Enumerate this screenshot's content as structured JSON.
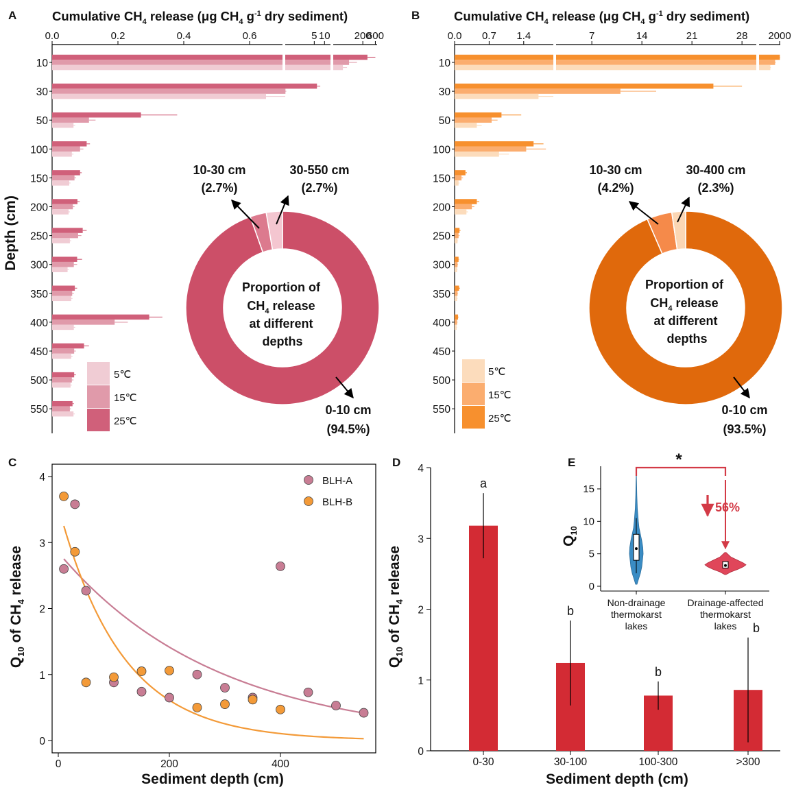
{
  "colors": {
    "A": [
      "#f0ccd4",
      "#e09aaa",
      "#d0607a"
    ],
    "A_donut": [
      "#cc4f68",
      "#dc7a8e",
      "#f4c6d0"
    ],
    "B": [
      "#fcdcbc",
      "#fbad6f",
      "#f7902e"
    ],
    "B_donut": [
      "#e0690c",
      "#f58a4a",
      "#fbd6b4"
    ],
    "blhA": "#c87d94",
    "blhB": "#f39a38",
    "bar": "#d32b34",
    "violin_blue": "#3a8cc4",
    "violin_red": "#e0465a"
  },
  "panel_labels": {
    "A": "A",
    "B": "B",
    "C": "C",
    "D": "D",
    "E": "E"
  },
  "panelA": {
    "title_prefix": "Cumulative CH",
    "title_sub": "4",
    "title_mid": " release (μg CH",
    "title_sub2": "4",
    "title_mid2": " g",
    "title_sup": "-1",
    "title_end": " dry sediment)",
    "xticks": [
      "0.0",
      "0.2",
      "0.4",
      "0.6",
      "5",
      "10",
      "200",
      "600"
    ],
    "ylabel": "Depth (cm)",
    "depths": [
      "10",
      "30",
      "50",
      "100",
      "150",
      "200",
      "250",
      "300",
      "350",
      "400",
      "450",
      "500",
      "550"
    ],
    "legend": [
      "5℃",
      "15℃",
      "25℃"
    ],
    "donut_slices": [
      94.5,
      2.7,
      2.7
    ],
    "donut_labels": {
      "top_left_1": "10-30 cm",
      "top_left_2": "(2.7%)",
      "top_right_1": "30-550 cm",
      "top_right_2": "(2.7%)",
      "bottom_1": "0-10 cm",
      "bottom_2": "(94.5%)"
    },
    "center_text": {
      "l1": "Proportion of",
      "l2a": "CH",
      "l2sub": "4",
      "l2b": " release",
      "l3": "at different",
      "l4": "depths"
    }
  },
  "panelB": {
    "title_prefix": "Cumulative CH",
    "title_sub": "4",
    "title_mid": " release (μg CH",
    "title_sub2": "4",
    "title_mid2": " g",
    "title_sup": "-1",
    "title_end": " dry sediment)",
    "xticks": [
      "0.0",
      "0.7",
      "1.4",
      "7",
      "14",
      "21",
      "28",
      "2000"
    ],
    "depths": [
      "10",
      "30",
      "50",
      "100",
      "150",
      "200",
      "250",
      "300",
      "350",
      "400",
      "450",
      "500",
      "550"
    ],
    "legend": [
      "5℃",
      "15℃",
      "25℃"
    ],
    "donut_slices": [
      93.5,
      4.2,
      2.3
    ],
    "donut_labels": {
      "top_left_1": "10-30 cm",
      "top_left_2": "(4.2%)",
      "top_right_1": "30-400 cm",
      "top_right_2": "(2.3%)",
      "bottom_1": "0-10 cm",
      "bottom_2": "(93.5%)"
    },
    "center_text": {
      "l1": "Proportion of",
      "l2a": "CH",
      "l2sub": "4",
      "l2b": " release",
      "l3": "at different",
      "l4": "depths"
    }
  },
  "panelC": {
    "ylabel_a": "Q",
    "ylabel_sub": "10",
    "ylabel_b": " of CH",
    "ylabel_sub2": "4",
    "ylabel_c": " release",
    "xlabel": "Sediment depth (cm)",
    "yticks": [
      "0",
      "1",
      "2",
      "3",
      "4"
    ],
    "xticks": [
      "0",
      "200",
      "400"
    ],
    "legend": [
      "BLH-A",
      "BLH-B"
    ]
  },
  "panelD": {
    "ylabel_a": "Q",
    "ylabel_sub": "10",
    "ylabel_b": " of CH",
    "ylabel_sub2": "4",
    "ylabel_c": " release",
    "xlabel": "Sediment depth (cm)",
    "yticks": [
      "0",
      "1",
      "2",
      "3",
      "4"
    ],
    "letters": [
      "a",
      "b",
      "b",
      "b"
    ]
  },
  "panelE": {
    "ylabel_a": "Q",
    "ylabel_sub": "10",
    "yticks": [
      "0",
      "5",
      "10",
      "15"
    ],
    "sig": "*",
    "reduction": "56%",
    "cat1": [
      "Non-drainage",
      "thermokarst",
      "lakes"
    ],
    "cat2": [
      "Drainage-affected",
      "thermokarst",
      "lakes"
    ]
  },
  "chart_data": [
    {
      "type": "bar",
      "panel": "A",
      "title": "Cumulative CH4 release (μg CH4 g-1 dry sediment)",
      "ylabel": "Depth (cm)",
      "categories": [
        "10",
        "30",
        "50",
        "100",
        "150",
        "200",
        "250",
        "300",
        "350",
        "400",
        "450",
        "500",
        "550"
      ],
      "series": [
        {
          "name": "25℃",
          "values": [
            300,
            6,
            0.27,
            0.105,
            0.085,
            0.077,
            0.093,
            0.076,
            0.069,
            0.295,
            0.097,
            0.067,
            0.062
          ],
          "err": [
            300,
            1.5,
            0.11,
            0.01,
            0.005,
            0.007,
            0.012,
            0.015,
            0.007,
            0.04,
            0.015,
            0.005,
            0.004
          ]
        },
        {
          "name": "15℃",
          "values": [
            60,
            0.71,
            0.112,
            0.085,
            0.068,
            0.063,
            0.079,
            0.066,
            0.061,
            0.19,
            0.067,
            0.06,
            0.054
          ],
          "err": [
            60,
            0.04,
            0.02,
            0.01,
            0.005,
            0.005,
            0.01,
            0.01,
            0.005,
            0.04,
            0.005,
            0.005,
            0.003
          ]
        },
        {
          "name": "5℃",
          "values": [
            35,
            0.65,
            0.065,
            0.06,
            0.052,
            0.05,
            0.054,
            0.047,
            0.058,
            0.066,
            0.058,
            0.056,
            0.065
          ],
          "err": [
            15,
            0.05,
            0.005,
            0.005,
            0.004,
            0.004,
            0.004,
            0.004,
            0.004,
            0.004,
            0.004,
            0.004,
            0.004
          ]
        }
      ],
      "donut": {
        "labels": [
          "0-10 cm",
          "10-30 cm",
          "30-550 cm"
        ],
        "values": [
          94.5,
          2.7,
          2.7
        ]
      }
    },
    {
      "type": "bar",
      "panel": "B",
      "title": "Cumulative CH4 release (μg CH4 g-1 dry sediment)",
      "categories": [
        "10",
        "30",
        "50",
        "100",
        "150",
        "200",
        "250",
        "300",
        "350",
        "400",
        "450",
        "500",
        "550"
      ],
      "series": [
        {
          "name": "25℃",
          "values": [
            2100,
            24,
            0.95,
            1.6,
            0.22,
            0.45,
            0.1,
            0.08,
            0.09,
            0.07,
            0.0,
            0.0,
            0.0
          ],
          "err": [
            100,
            4,
            0.4,
            0.2,
            0.03,
            0.05,
            0.02,
            0.01,
            0.02,
            0.01,
            0,
            0,
            0
          ]
        },
        {
          "name": "15℃",
          "values": [
            800,
            11,
            0.75,
            1.45,
            0.14,
            0.35,
            0.08,
            0.06,
            0.06,
            0.05,
            0.0,
            0.0,
            0.0
          ],
          "err": [
            100,
            5,
            0.12,
            0.4,
            0.03,
            0.05,
            0.02,
            0.01,
            0.01,
            0.01,
            0,
            0,
            0
          ]
        },
        {
          "name": "5℃",
          "values": [
            300,
            1.7,
            0.45,
            0.9,
            0.08,
            0.24,
            0.06,
            0.05,
            0.05,
            0.04,
            0.0,
            0.0,
            0.0
          ],
          "err": [
            30,
            0.3,
            0.1,
            0.2,
            0.02,
            0.03,
            0.01,
            0.01,
            0.01,
            0.01,
            0,
            0,
            0
          ]
        }
      ],
      "donut": {
        "labels": [
          "0-10 cm",
          "10-30 cm",
          "30-400 cm"
        ],
        "values": [
          93.5,
          4.2,
          2.3
        ]
      }
    },
    {
      "type": "scatter",
      "panel": "C",
      "xlabel": "Sediment depth (cm)",
      "ylabel": "Q10 of CH4 release",
      "xlim": [
        -10,
        570
      ],
      "ylim": [
        -0.1,
        4.2
      ],
      "series": [
        {
          "name": "BLH-A",
          "x": [
            10,
            30,
            50,
            100,
            150,
            200,
            250,
            300,
            350,
            400,
            450,
            500,
            550
          ],
          "y": [
            2.6,
            3.58,
            2.27,
            0.88,
            0.74,
            0.65,
            1.0,
            0.8,
            0.65,
            2.64,
            0.73,
            0.53,
            0.42
          ],
          "fit": {
            "a": 2.85,
            "k": 0.0035
          }
        },
        {
          "name": "BLH-B",
          "x": [
            10,
            30,
            50,
            100,
            150,
            200,
            250,
            300,
            350,
            400
          ],
          "y": [
            3.7,
            2.86,
            0.88,
            0.96,
            1.05,
            1.06,
            0.5,
            0.55,
            0.62,
            0.47
          ],
          "fit": {
            "a": 3.55,
            "k": 0.0088
          }
        }
      ]
    },
    {
      "type": "bar",
      "panel": "D",
      "xlabel": "Sediment depth (cm)",
      "ylabel": "Q10 of CH4 release",
      "categories": [
        "0-30",
        "30-100",
        "100-300",
        ">300"
      ],
      "values": [
        3.18,
        1.24,
        0.78,
        0.86
      ],
      "err_low": [
        2.72,
        0.64,
        0.58,
        0.12
      ],
      "err_high": [
        3.64,
        1.84,
        0.98,
        1.6
      ],
      "ylim": [
        0,
        4
      ]
    },
    {
      "type": "violin",
      "panel": "E",
      "ylabel": "Q10",
      "categories": [
        "Non-drainage thermokarst lakes",
        "Drainage-affected thermokarst lakes"
      ],
      "median": [
        5.8,
        3.2
      ],
      "range": [
        [
          0.3,
          17
        ],
        [
          1.8,
          5.2
        ]
      ],
      "ylim": [
        -0.5,
        19
      ]
    }
  ]
}
